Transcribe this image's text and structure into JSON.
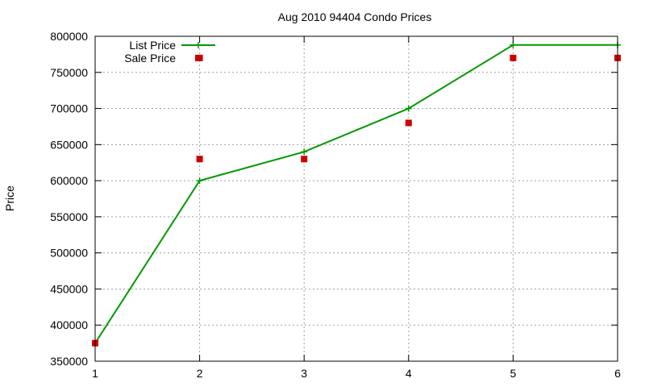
{
  "chart_data": {
    "type": "line",
    "title": "Aug 2010 94404 Condo Prices",
    "xlabel": "",
    "ylabel": "Price",
    "xlim": [
      1,
      6
    ],
    "ylim": [
      350000,
      800000
    ],
    "xticks": [
      "1",
      "2",
      "3",
      "4",
      "5",
      "6"
    ],
    "yticks": [
      "350000",
      "400000",
      "450000",
      "500000",
      "550000",
      "600000",
      "650000",
      "700000",
      "750000",
      "800000"
    ],
    "grid": true,
    "legend_position": "top-left",
    "series": [
      {
        "name": "List Price",
        "style": "linespoints",
        "marker": "plus",
        "color": "#009900",
        "x": [
          1,
          2,
          3,
          4,
          5,
          6
        ],
        "y": [
          375000,
          600000,
          640000,
          700000,
          788000,
          788000
        ]
      },
      {
        "name": "Sale Price",
        "style": "points",
        "marker": "square",
        "color": "#cc0000",
        "x": [
          1,
          2,
          2,
          3,
          4,
          5,
          6
        ],
        "y": [
          375000,
          630000,
          770000,
          630000,
          680000,
          770000,
          770000
        ]
      }
    ]
  }
}
